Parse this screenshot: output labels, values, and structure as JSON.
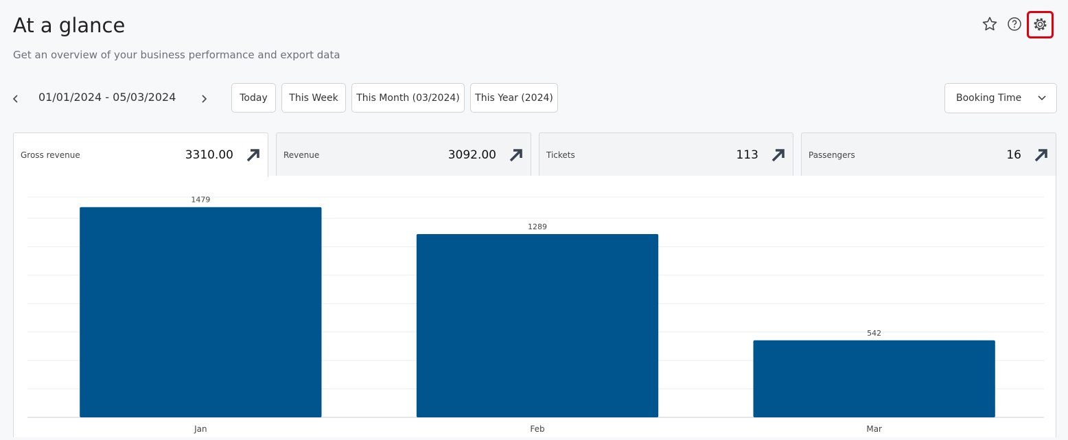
{
  "header": {
    "title": "At a glance",
    "subtitle": "Get an overview of your business performance and export data"
  },
  "date_range": "01/01/2024 - 05/03/2024",
  "quick_ranges": [
    "Today",
    "This Week",
    "This Month (03/2024)",
    "This Year (2024)"
  ],
  "time_basis": "Booking Time",
  "metrics": [
    {
      "label": "Gross revenue",
      "value": "3310.00"
    },
    {
      "label": "Revenue",
      "value": "3092.00"
    },
    {
      "label": "Tickets",
      "value": "113"
    },
    {
      "label": "Passengers",
      "value": "16"
    }
  ],
  "chart_data": {
    "type": "bar",
    "categories": [
      "Jan",
      "Feb",
      "Mar"
    ],
    "values": [
      1479,
      1289,
      542
    ],
    "color": "#00558f",
    "ylim": [
      0,
      1550
    ],
    "yticks": [
      0,
      200,
      400,
      600,
      800,
      1000,
      1200,
      1400
    ],
    "grid": true
  }
}
